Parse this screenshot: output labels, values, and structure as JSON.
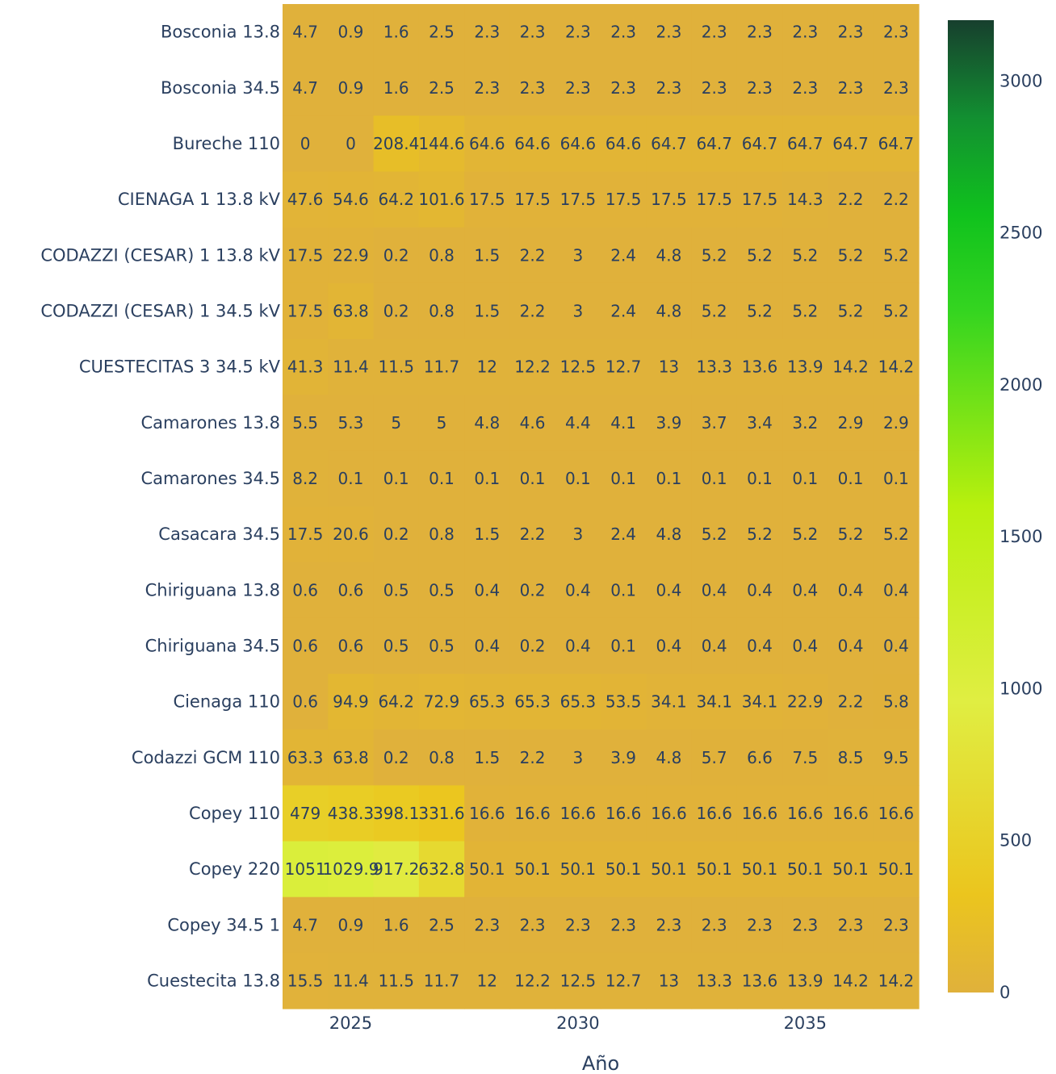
{
  "chart_data": {
    "type": "heatmap",
    "xlabel": "Año",
    "ylabel": "",
    "title": "",
    "x": [
      2024,
      2025,
      2026,
      2027,
      2028,
      2029,
      2030,
      2031,
      2032,
      2033,
      2034,
      2035,
      2036,
      2037
    ],
    "x_tick_values": [
      2025,
      2030,
      2035
    ],
    "x_tick_labels": [
      "2025",
      "2030",
      "2035"
    ],
    "rows": [
      "Bosconia 13.8",
      "Bosconia 34.5",
      "Bureche 110",
      "CIENAGA 1 13.8 kV",
      "CODAZZI (CESAR) 1 13.8 kV",
      "CODAZZI (CESAR) 1 34.5 kV",
      "CUESTECITAS 3 34.5 kV",
      "Camarones 13.8",
      "Camarones 34.5",
      "Casacara 34.5",
      "Chiriguana 13.8",
      "Chiriguana 34.5",
      "Cienaga 110",
      "Codazzi GCM 110",
      "Copey 110",
      "Copey 220",
      "Copey 34.5 1",
      "Cuestecita 13.8"
    ],
    "values": [
      [
        4.7,
        0.9,
        1.6,
        2.5,
        2.3,
        2.3,
        2.3,
        2.3,
        2.3,
        2.3,
        2.3,
        2.3,
        2.3,
        2.3
      ],
      [
        4.7,
        0.9,
        1.6,
        2.5,
        2.3,
        2.3,
        2.3,
        2.3,
        2.3,
        2.3,
        2.3,
        2.3,
        2.3,
        2.3
      ],
      [
        0,
        0,
        208.4,
        144.6,
        64.6,
        64.6,
        64.6,
        64.6,
        64.7,
        64.7,
        64.7,
        64.7,
        64.7,
        64.7
      ],
      [
        47.6,
        54.6,
        64.2,
        101.6,
        17.5,
        17.5,
        17.5,
        17.5,
        17.5,
        17.5,
        17.5,
        14.3,
        2.2,
        2.2
      ],
      [
        17.5,
        22.9,
        0.2,
        0.8,
        1.5,
        2.2,
        3,
        2.4,
        4.8,
        5.2,
        5.2,
        5.2,
        5.2,
        5.2
      ],
      [
        17.5,
        63.8,
        0.2,
        0.8,
        1.5,
        2.2,
        3,
        2.4,
        4.8,
        5.2,
        5.2,
        5.2,
        5.2,
        5.2
      ],
      [
        41.3,
        11.4,
        11.5,
        11.7,
        12,
        12.2,
        12.5,
        12.7,
        13,
        13.3,
        13.6,
        13.9,
        14.2,
        14.2
      ],
      [
        5.5,
        5.3,
        5,
        5,
        4.8,
        4.6,
        4.4,
        4.1,
        3.9,
        3.7,
        3.4,
        3.2,
        2.9,
        2.9
      ],
      [
        8.2,
        0.1,
        0.1,
        0.1,
        0.1,
        0.1,
        0.1,
        0.1,
        0.1,
        0.1,
        0.1,
        0.1,
        0.1,
        0.1
      ],
      [
        17.5,
        20.6,
        0.2,
        0.8,
        1.5,
        2.2,
        3,
        2.4,
        4.8,
        5.2,
        5.2,
        5.2,
        5.2,
        5.2
      ],
      [
        0.6,
        0.6,
        0.5,
        0.5,
        0.4,
        0.2,
        0.4,
        0.1,
        0.4,
        0.4,
        0.4,
        0.4,
        0.4,
        0.4
      ],
      [
        0.6,
        0.6,
        0.5,
        0.5,
        0.4,
        0.2,
        0.4,
        0.1,
        0.4,
        0.4,
        0.4,
        0.4,
        0.4,
        0.4
      ],
      [
        0.6,
        94.9,
        64.2,
        72.9,
        65.3,
        65.3,
        65.3,
        53.5,
        34.1,
        34.1,
        34.1,
        22.9,
        2.2,
        5.8
      ],
      [
        63.3,
        63.8,
        0.2,
        0.8,
        1.5,
        2.2,
        3,
        3.9,
        4.8,
        5.7,
        6.6,
        7.5,
        8.5,
        9.5
      ],
      [
        479,
        438.3,
        398.1,
        331.6,
        16.6,
        16.6,
        16.6,
        16.6,
        16.6,
        16.6,
        16.6,
        16.6,
        16.6,
        16.6
      ],
      [
        1051,
        1029.9,
        917.2,
        632.8,
        50.1,
        50.1,
        50.1,
        50.1,
        50.1,
        50.1,
        50.1,
        50.1,
        50.1,
        50.1
      ],
      [
        4.7,
        0.9,
        1.6,
        2.5,
        2.3,
        2.3,
        2.3,
        2.3,
        2.3,
        2.3,
        2.3,
        2.3,
        2.3,
        2.3
      ],
      [
        15.5,
        11.4,
        11.5,
        11.7,
        12,
        12.2,
        12.5,
        12.7,
        13,
        13.3,
        13.6,
        13.9,
        14.2,
        14.2
      ]
    ],
    "zmin": 0,
    "zmax": 3200,
    "colorscale": [
      [
        0,
        "#e0b13b"
      ],
      [
        0.1,
        "#ebc51e"
      ],
      [
        0.3,
        "#e0ee42"
      ],
      [
        0.5,
        "#b8f00e"
      ],
      [
        0.7,
        "#35d520"
      ],
      [
        0.8,
        "#10c21d"
      ],
      [
        0.9,
        "#128f31"
      ],
      [
        1.0,
        "#173f2e"
      ]
    ],
    "colorbar_ticks": [
      0,
      500,
      1000,
      1500,
      2000,
      2500,
      3000
    ],
    "colorbar_tick_labels": [
      "0",
      "500",
      "1000",
      "1500",
      "2000",
      "2500",
      "3000"
    ],
    "show_cell_text": true,
    "grid": false
  }
}
